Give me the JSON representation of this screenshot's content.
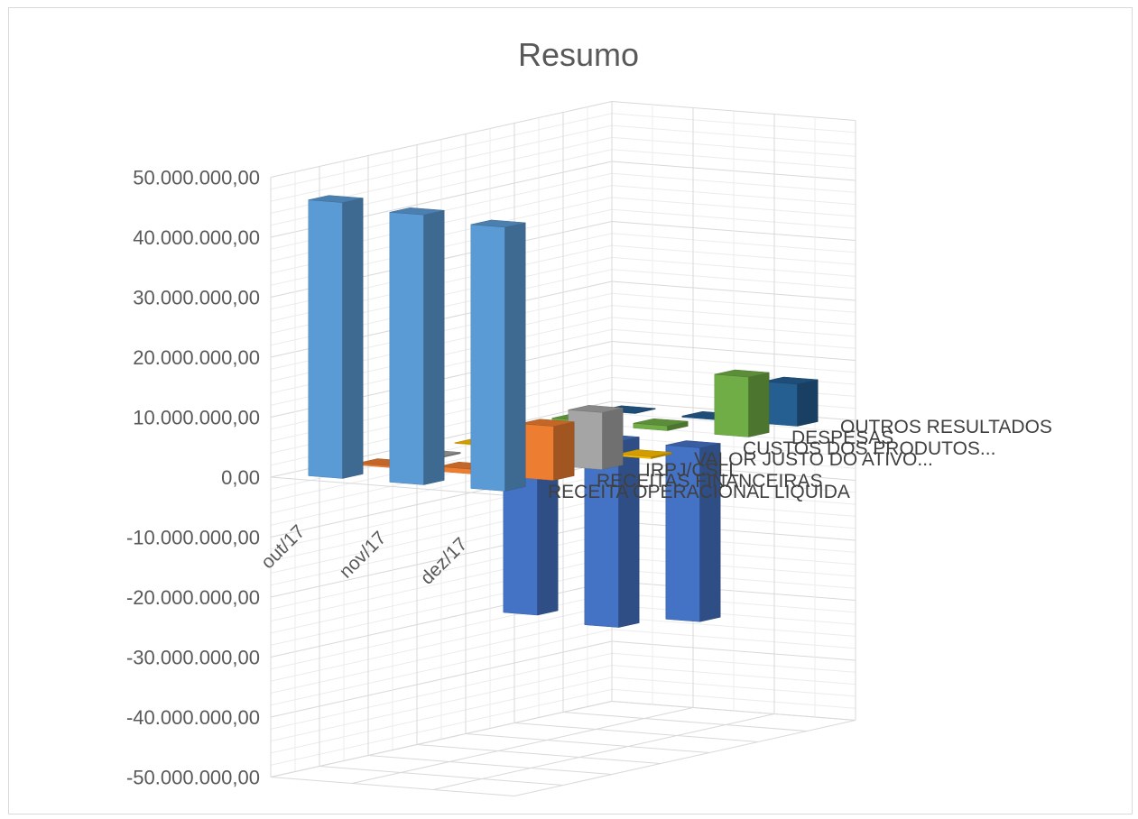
{
  "chart_data": {
    "type": "bar",
    "subtype": "3d-column",
    "title": "Resumo",
    "xlabel": "",
    "ylabel": "",
    "ylim": [
      -50000000,
      50000000
    ],
    "y_ticks": [
      "50.000.000,00",
      "40.000.000,00",
      "30.000.000,00",
      "20.000.000,00",
      "10.000.000,00",
      "0,00",
      "-10.000.000,00",
      "-20.000.000,00",
      "-30.000.000,00",
      "-40.000.000,00",
      "-50.000.000,00"
    ],
    "categories": [
      "out/17",
      "nov/17",
      "dez/17"
    ],
    "grid": true,
    "series": [
      {
        "name": "RECEITA OPERACIONAL LIQUIDA",
        "color": "#5b9bd5",
        "values": [
          46000000,
          45000000,
          44000000
        ]
      },
      {
        "name": "RECEITAS FINANCEIRAS",
        "color": "#ed7d31",
        "values": [
          300000,
          800000,
          9000000
        ]
      },
      {
        "name": "IRPJ/CSLL",
        "color": "#a5a5a5",
        "values": [
          -200000,
          -500000,
          9500000
        ]
      },
      {
        "name": "VALOR JUSTO DO ATIVO...",
        "color": "#ffc000",
        "values": [
          100000,
          200000,
          300000
        ]
      },
      {
        "name": "CUSTOS DOS PRODUTOS...",
        "color": "#4472c4",
        "values": [
          -30000000,
          -31000000,
          -29000000
        ]
      },
      {
        "name": "DESPESAS",
        "color": "#70ad47",
        "values": [
          600000,
          800000,
          10000000
        ]
      },
      {
        "name": "OUTROS RESULTADOS",
        "color": "#255e91",
        "values": [
          100000,
          200000,
          7000000
        ]
      }
    ]
  }
}
